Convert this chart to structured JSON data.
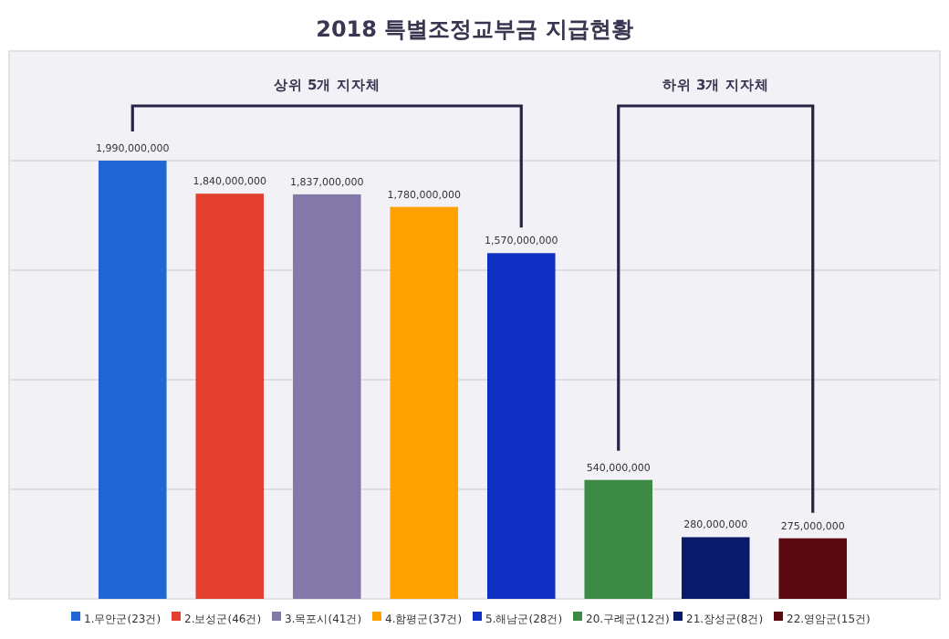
{
  "chart_data": {
    "type": "bar",
    "title": "2018 특별조정교부금 지급현황",
    "categories": [
      "1.무안군(23건)",
      "2.보성군(46건)",
      "3.목포시(41건)",
      "4.함평군(37건)",
      "5.해남군(28건)",
      "20.구례군(12건)",
      "21.장성군(8건)",
      "22.영암군(15건)"
    ],
    "values": [
      1990000000,
      1840000000,
      1837000000,
      1780000000,
      1570000000,
      540000000,
      280000000,
      275000000
    ],
    "value_labels": [
      "1,990,000,000",
      "1,840,000,000",
      "1,837,000,000",
      "1,780,000,000",
      "1,570,000,000",
      "540,000,000",
      "280,000,000",
      "275,000,000"
    ],
    "colors": [
      "#2266d6",
      "#e3402f",
      "#8478a8",
      "#ffa200",
      "#0f2fc4",
      "#3c8a45",
      "#0a1a6a",
      "#5a0a10"
    ],
    "grid": "y",
    "annotations": [
      "상위 5개 지자체",
      "하위 3개 지자체"
    ]
  }
}
